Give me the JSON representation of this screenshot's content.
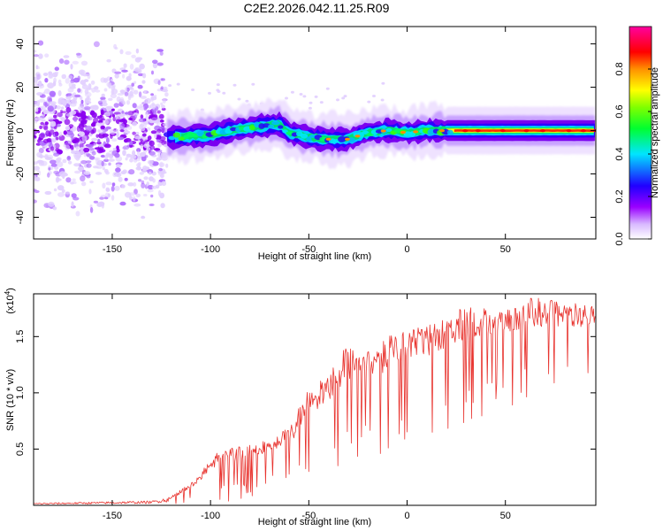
{
  "title": "C2E2.2026.042.11.25.R09",
  "colors": {
    "snr_line": "#e8332e",
    "background": "#ffffff",
    "axis": "#000000"
  },
  "chart_data": [
    {
      "type": "heatmap",
      "xlabel": "Height of straight line (km)",
      "ylabel": "Frequency (Hz)",
      "xlim": [
        -190,
        96
      ],
      "ylim": [
        -50,
        48
      ],
      "xticks": [
        -150,
        -100,
        -50,
        0,
        50
      ],
      "yticks": [
        -40,
        -20,
        0,
        20,
        40
      ],
      "colorbar": {
        "label": "Normalized spectral amplitude",
        "range": [
          0.0,
          1.0
        ],
        "ticks": [
          0.0,
          0.2,
          0.4,
          0.6,
          0.8
        ],
        "tick_labels": [
          "0.0",
          "0.2",
          "0.4",
          "0.6",
          "0.8"
        ],
        "colormap": "rainbow (white-violet-blue-cyan-green-yellow-red-magenta)"
      },
      "ridge_center_freq": [
        [
          -190,
          0
        ],
        [
          -150,
          0
        ],
        [
          -120,
          -3
        ],
        [
          -100,
          -2
        ],
        [
          -90,
          0
        ],
        [
          -75,
          2
        ],
        [
          -65,
          3
        ],
        [
          -60,
          -1
        ],
        [
          -50,
          -3
        ],
        [
          -40,
          -4
        ],
        [
          -30,
          -4
        ],
        [
          -20,
          -1
        ],
        [
          -10,
          0
        ],
        [
          0,
          -1
        ],
        [
          10,
          0
        ],
        [
          25,
          0
        ],
        [
          50,
          0
        ],
        [
          96,
          0
        ]
      ],
      "annotation": "noise spread over ±50 Hz below about -120 km; narrow ridge near 0 Hz above; peak amplitude (red) from about 25 km"
    },
    {
      "type": "line",
      "xlabel": "Height of straight line (km)",
      "ylabel": "SNR (10 * v/v)",
      "y_multiplier_label": "(x10",
      "y_multiplier_exponent": "4",
      "xlim": [
        -190,
        96
      ],
      "ylim": [
        0,
        1.88
      ],
      "xticks": [
        -150,
        -100,
        -50,
        0,
        50
      ],
      "yticks": [
        0.5,
        1.0,
        1.5
      ],
      "ytick_labels": [
        "0.5",
        "1.0",
        "1.5"
      ],
      "series": [
        {
          "name": "SNR",
          "envelope_upper": [
            [
              -190,
              0.02
            ],
            [
              -130,
              0.04
            ],
            [
              -120,
              0.08
            ],
            [
              -110,
              0.2
            ],
            [
              -95,
              0.5
            ],
            [
              -80,
              0.55
            ],
            [
              -60,
              0.7
            ],
            [
              -50,
              1.05
            ],
            [
              -40,
              1.2
            ],
            [
              -30,
              1.45
            ],
            [
              -20,
              1.4
            ],
            [
              -10,
              1.5
            ],
            [
              0,
              1.55
            ],
            [
              10,
              1.6
            ],
            [
              20,
              1.7
            ],
            [
              28,
              1.75
            ],
            [
              40,
              1.77
            ],
            [
              55,
              1.8
            ],
            [
              65,
              1.85
            ],
            [
              80,
              1.8
            ],
            [
              96,
              1.8
            ]
          ],
          "envelope_lower": [
            [
              -190,
              0.0
            ],
            [
              -120,
              0.0
            ],
            [
              -100,
              0.02
            ],
            [
              -80,
              0.05
            ],
            [
              -60,
              0.1
            ],
            [
              -40,
              0.2
            ],
            [
              -20,
              0.35
            ],
            [
              0,
              0.5
            ],
            [
              20,
              0.65
            ],
            [
              40,
              0.8
            ],
            [
              60,
              0.9
            ],
            [
              80,
              1.0
            ],
            [
              96,
              1.05
            ]
          ]
        }
      ]
    }
  ]
}
